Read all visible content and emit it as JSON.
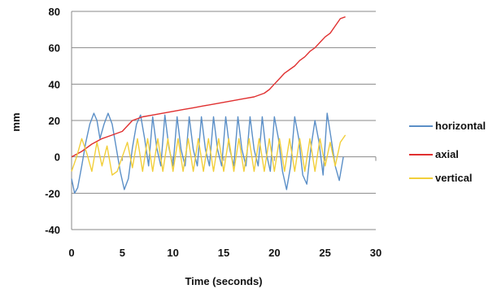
{
  "chart_data": {
    "type": "line",
    "title": "",
    "xlabel": "Time (seconds)",
    "ylabel": "mm",
    "xlim": [
      0,
      30
    ],
    "ylim": [
      -40,
      80
    ],
    "x_ticks": [
      "0",
      "5",
      "10",
      "15",
      "20",
      "25",
      "30"
    ],
    "y_ticks": [
      "-40",
      "-20",
      "0",
      "20",
      "40",
      "60",
      "80"
    ],
    "grid": "horizontal",
    "legend_position": "right",
    "series": [
      {
        "name": "horizontal",
        "color": "#5b8fc7",
        "x": [
          0,
          0.3,
          0.6,
          1.0,
          1.4,
          1.8,
          2.2,
          2.5,
          2.8,
          3.2,
          3.6,
          4.0,
          4.4,
          4.8,
          5.2,
          5.6,
          6.0,
          6.4,
          6.8,
          7.2,
          7.6,
          8.0,
          8.4,
          8.8,
          9.2,
          9.6,
          10.0,
          10.4,
          10.8,
          11.2,
          11.6,
          12.0,
          12.4,
          12.8,
          13.2,
          13.6,
          14.0,
          14.4,
          14.8,
          15.2,
          15.6,
          16.0,
          16.4,
          16.8,
          17.2,
          17.6,
          18.0,
          18.4,
          18.8,
          19.2,
          19.6,
          20.0,
          20.4,
          20.8,
          21.2,
          21.6,
          22.0,
          22.4,
          22.8,
          23.2,
          23.6,
          24.0,
          24.4,
          24.8,
          25.2,
          25.6,
          26.0,
          26.4,
          26.8
        ],
        "values": [
          -12,
          -20,
          -17,
          -5,
          8,
          18,
          24,
          20,
          10,
          18,
          24,
          18,
          5,
          -8,
          -18,
          -12,
          5,
          18,
          23,
          10,
          -5,
          22,
          5,
          -5,
          23,
          5,
          -5,
          22,
          4,
          -5,
          22,
          4,
          -5,
          22,
          4,
          -5,
          22,
          4,
          -5,
          22,
          4,
          -5,
          22,
          4,
          -5,
          22,
          4,
          -5,
          22,
          2,
          -8,
          22,
          10,
          -8,
          -18,
          -5,
          22,
          10,
          -10,
          -15,
          5,
          20,
          8,
          -10,
          24,
          10,
          -5,
          -13,
          0
        ]
      },
      {
        "name": "axial",
        "color": "#e03030",
        "x": [
          0,
          1,
          2,
          3,
          4,
          5,
          6,
          7,
          8,
          9,
          10,
          11,
          12,
          13,
          14,
          15,
          16,
          17,
          18,
          19,
          19.5,
          20,
          20.5,
          21,
          21.5,
          22,
          22.5,
          23,
          23.5,
          24,
          24.5,
          25,
          25.5,
          26,
          26.5,
          27
        ],
        "values": [
          0,
          3,
          7,
          10,
          12,
          14,
          20,
          22,
          23,
          24,
          25,
          26,
          27,
          28,
          29,
          30,
          31,
          32,
          33,
          35,
          37,
          40,
          43,
          46,
          48,
          50,
          53,
          55,
          58,
          60,
          63,
          66,
          68,
          72,
          76,
          77
        ]
      },
      {
        "name": "vertical",
        "color": "#f2cf3a",
        "x": [
          0,
          0.5,
          1.0,
          1.5,
          2.0,
          2.5,
          3.0,
          3.5,
          4.0,
          4.5,
          5.0,
          5.5,
          6.0,
          6.5,
          7.0,
          7.5,
          8.0,
          8.5,
          9.0,
          9.5,
          10.0,
          10.5,
          11.0,
          11.5,
          12.0,
          12.5,
          13.0,
          13.5,
          14.0,
          14.5,
          15.0,
          15.5,
          16.0,
          16.5,
          17.0,
          17.5,
          18.0,
          18.5,
          19.0,
          19.5,
          20.0,
          20.5,
          21.0,
          21.5,
          22.0,
          22.5,
          23.0,
          23.5,
          24.0,
          24.5,
          25.0,
          25.5,
          26.0,
          26.5,
          27.0
        ],
        "values": [
          -8,
          0,
          10,
          2,
          -8,
          8,
          -5,
          6,
          -10,
          -8,
          0,
          8,
          -6,
          10,
          -8,
          10,
          -8,
          10,
          -8,
          10,
          -8,
          10,
          -8,
          10,
          -8,
          10,
          -8,
          10,
          -8,
          10,
          -8,
          10,
          -8,
          10,
          -8,
          10,
          -8,
          10,
          -8,
          10,
          -8,
          10,
          -8,
          10,
          -8,
          10,
          -8,
          10,
          -8,
          10,
          -5,
          8,
          -5,
          8,
          12
        ]
      }
    ]
  }
}
